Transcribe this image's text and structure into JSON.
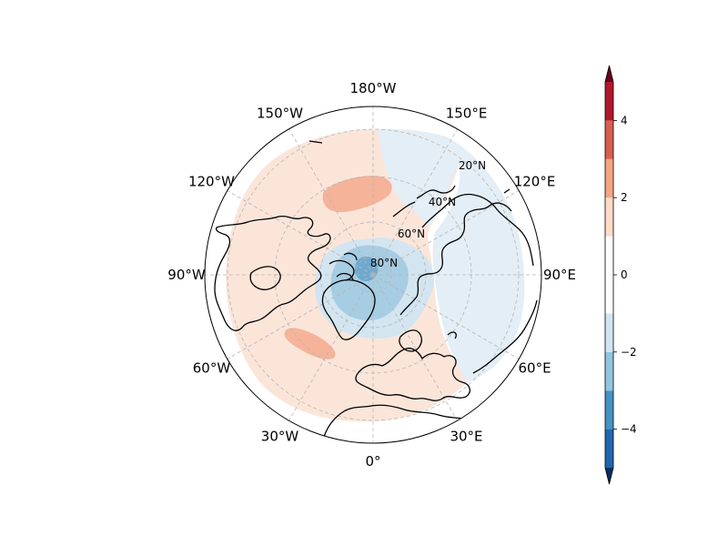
{
  "map": {
    "projection": "north-polar-stereographic",
    "longitude_labels": [
      {
        "text": "180°W",
        "lon": 180
      },
      {
        "text": "150°E",
        "lon": 150
      },
      {
        "text": "120°E",
        "lon": 120
      },
      {
        "text": "90°E",
        "lon": 90
      },
      {
        "text": "60°E",
        "lon": 60
      },
      {
        "text": "30°E",
        "lon": 30
      },
      {
        "text": "0°",
        "lon": 0
      },
      {
        "text": "30°W",
        "lon": -30
      },
      {
        "text": "60°W",
        "lon": -60
      },
      {
        "text": "90°W",
        "lon": -90
      },
      {
        "text": "120°W",
        "lon": -120
      },
      {
        "text": "150°W",
        "lon": -150
      }
    ],
    "latitude_labels": [
      {
        "text": "20°N",
        "lat": 20
      },
      {
        "text": "40°N",
        "lat": 40
      },
      {
        "text": "60°N",
        "lat": 60
      },
      {
        "text": "80°N",
        "lat": 80
      }
    ],
    "gridlines": true,
    "coastlines": true,
    "anomaly_regions": [
      {
        "name": "high-latitude negative anomaly core",
        "sign": "negative",
        "level": -3
      },
      {
        "name": "polar negative anomaly",
        "sign": "negative",
        "level": -2
      },
      {
        "name": "eurasia-pacific weak negative",
        "sign": "negative",
        "level": -1
      },
      {
        "name": "north pacific positive anomaly",
        "sign": "positive",
        "level": 2
      },
      {
        "name": "north atlantic positive anomaly",
        "sign": "positive",
        "level": 2
      },
      {
        "name": "mid-latitude weak positive",
        "sign": "positive",
        "level": 1
      }
    ]
  },
  "colorbar": {
    "ticks": [
      "4",
      "2",
      "0",
      "−2",
      "−4"
    ],
    "levels": [
      -5,
      -4,
      -3,
      -2,
      -1,
      1,
      2,
      3,
      4,
      5
    ],
    "extend": "both",
    "colors": [
      "#053061",
      "#2166ac",
      "#4393c3",
      "#92c5de",
      "#d1e5f0",
      "#ffffff",
      "#fddbc7",
      "#f4a582",
      "#d6604d",
      "#b2182b",
      "#67001f"
    ]
  }
}
